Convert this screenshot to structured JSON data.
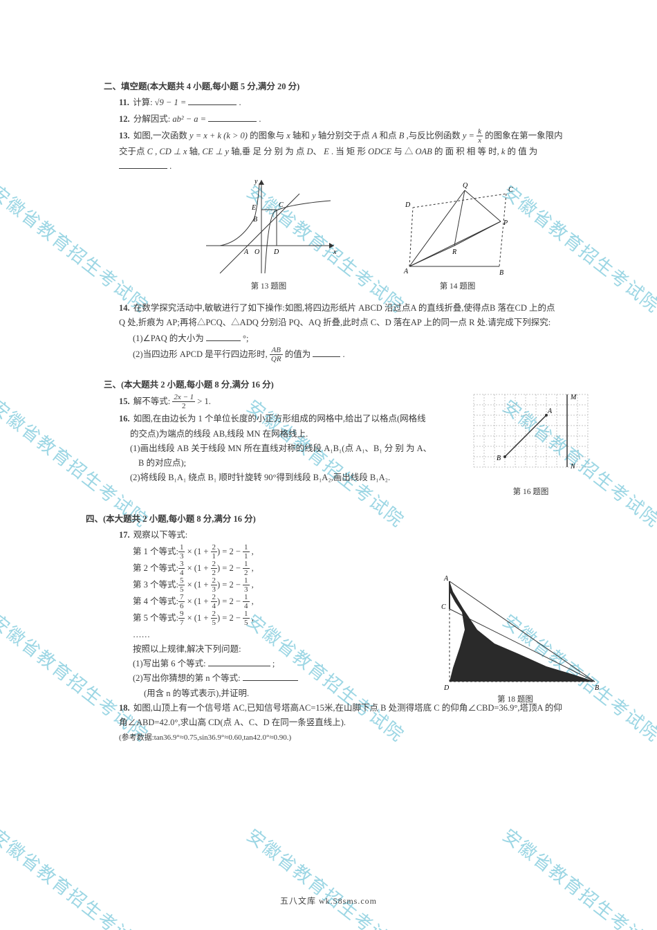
{
  "watermark_text": "安徽省教育招生考试院",
  "watermark_color": "#26a6c4",
  "section2": {
    "title": "二、填空题(本大题共 4 小题,每小题 5 分,满分 20 分)",
    "q11": {
      "num": "11.",
      "label": "计算:",
      "expr": "√9 − 1 =",
      "period": "."
    },
    "q12": {
      "num": "12.",
      "label": "分解因式:",
      "expr_prefix": "ab² − a =",
      "period": "."
    },
    "q13": {
      "num": "13.",
      "text1": "如图,一次函数 ",
      "fn1": "y = x + k (k > 0)",
      "text2": " 的图象与 ",
      "var_x": "x",
      "text2b": " 轴和 ",
      "var_y": "y",
      "text2c": " 轴分别交于点 ",
      "A": "A",
      "text2d": " 和点 ",
      "B": "B",
      "text3": ",与反比例函数 ",
      "fn2_lhs": "y = ",
      "fn2_num": "k",
      "fn2_den": "x",
      "text4": " 的图象在第一象限内",
      "line2a": "交于点 ",
      "C": "C",
      "comma1": ",",
      "cd": "CD ⊥ x",
      "axis1": " 轴,",
      "ce": "CE ⊥ y",
      "axis2": " 轴,垂 足 分 别 为 点 ",
      "D": "D",
      "E": "E",
      "text5": ". 当 矩 形 ",
      "odce": "ODCE",
      "text6": " 与 △",
      "oab": "OAB",
      "text7": " 的 面 积 相 等 时,",
      "kvar": "k",
      "text8": " 的 值 为",
      "blank_end": "."
    },
    "fig13_caption": "第 13 题图",
    "fig14_caption": "第 14 题图",
    "q14": {
      "num": "14.",
      "line1": "在数学探究活动中,敏敏进行了如下操作:如图,将四边形纸片 ABCD 沿过点A 的直线折叠,使得点B 落在CD 上的点",
      "line2": "Q 处,折痕为 AP;再将△PCQ、△ADQ 分别沿 PQ、AQ 折叠,此时点 C、D 落在AP 上的同一点 R 处.请完成下列探究:",
      "sub1_label": "(1)∠PAQ 的大小为",
      "sub1_unit": "°;",
      "sub2_label": "(2)当四边形 APCD 是平行四边形时,",
      "sub2_frac_t": "AB",
      "sub2_frac_b": "QR",
      "sub2_tail": "的值为",
      "sub2_end": "."
    }
  },
  "section3": {
    "title": "三、(本大题共 2 小题,每小题 8 分,满分 16 分)",
    "q15": {
      "num": "15.",
      "label": "解不等式:",
      "frac_t": "2x − 1",
      "frac_b": "2",
      "tail": " > 1."
    },
    "q16": {
      "num": "16.",
      "line1": "如图,在由边长为 1 个单位长度的小正方形组成的网格中,给出了以格点(网格线",
      "line2": "的交点)为端点的线段 AB,线段 MN 在网格线上.",
      "sub1": "(1)画出线段 AB 关于线段 MN 所在直线对称的线段 A₁B₁(点 A₁、B₁ 分 别 为 A、",
      "sub1b": "B 的对应点);",
      "sub2": "(2)将线段 B₁A₁ 绕点 B₁ 顺时针旋转 90°得到线段 B₁A₂,画出线段 B₁A₂.",
      "caption": "第 16 题图"
    }
  },
  "section4": {
    "title": "四、(本大题共 2 小题,每小题 8 分,满分 16 分)",
    "q17": {
      "num": "17.",
      "intro": "观察以下等式:",
      "rows": [
        {
          "label": "第 1 个等式:",
          "a": "1",
          "b": "3",
          "c": "2",
          "d": "1",
          "r": "1"
        },
        {
          "label": "第 2 个等式:",
          "a": "3",
          "b": "4",
          "c": "2",
          "d": "2",
          "r": "2"
        },
        {
          "label": "第 3 个等式:",
          "a": "5",
          "b": "5",
          "c": "2",
          "d": "3",
          "r": "3"
        },
        {
          "label": "第 4 个等式:",
          "a": "7",
          "b": "6",
          "c": "2",
          "d": "4",
          "r": "4"
        },
        {
          "label": "第 5 个等式:",
          "a": "9",
          "b": "7",
          "c": "2",
          "d": "5",
          "r": "5"
        }
      ],
      "ellipsis": "……",
      "followup": "按照以上规律,解决下列问题:",
      "sub1": "(1)写出第 6 个等式:",
      "sub1_end": ";",
      "sub2": "(2)写出你猜想的第 n 个等式:",
      "sub2_tail": "(用含 n 的等式表示),并证明."
    },
    "q18": {
      "num": "18.",
      "line1": "如图,山顶上有一个信号塔 AC,已知信号塔高AC=15米,在山脚下点 B 处测得塔底 C 的仰角∠CBD=36.9°,塔顶A 的仰",
      "line2": "角∠ABD=42.0°,求山高 CD(点 A、C、D 在同一条竖直线上).",
      "line3": "(参考数据:tan36.9°≈0.75,sin36.9°≈0.60,tan42.0°≈0.90.)",
      "caption": "第 18 题图"
    }
  },
  "footer": "五八文库 wk.58sms.com"
}
